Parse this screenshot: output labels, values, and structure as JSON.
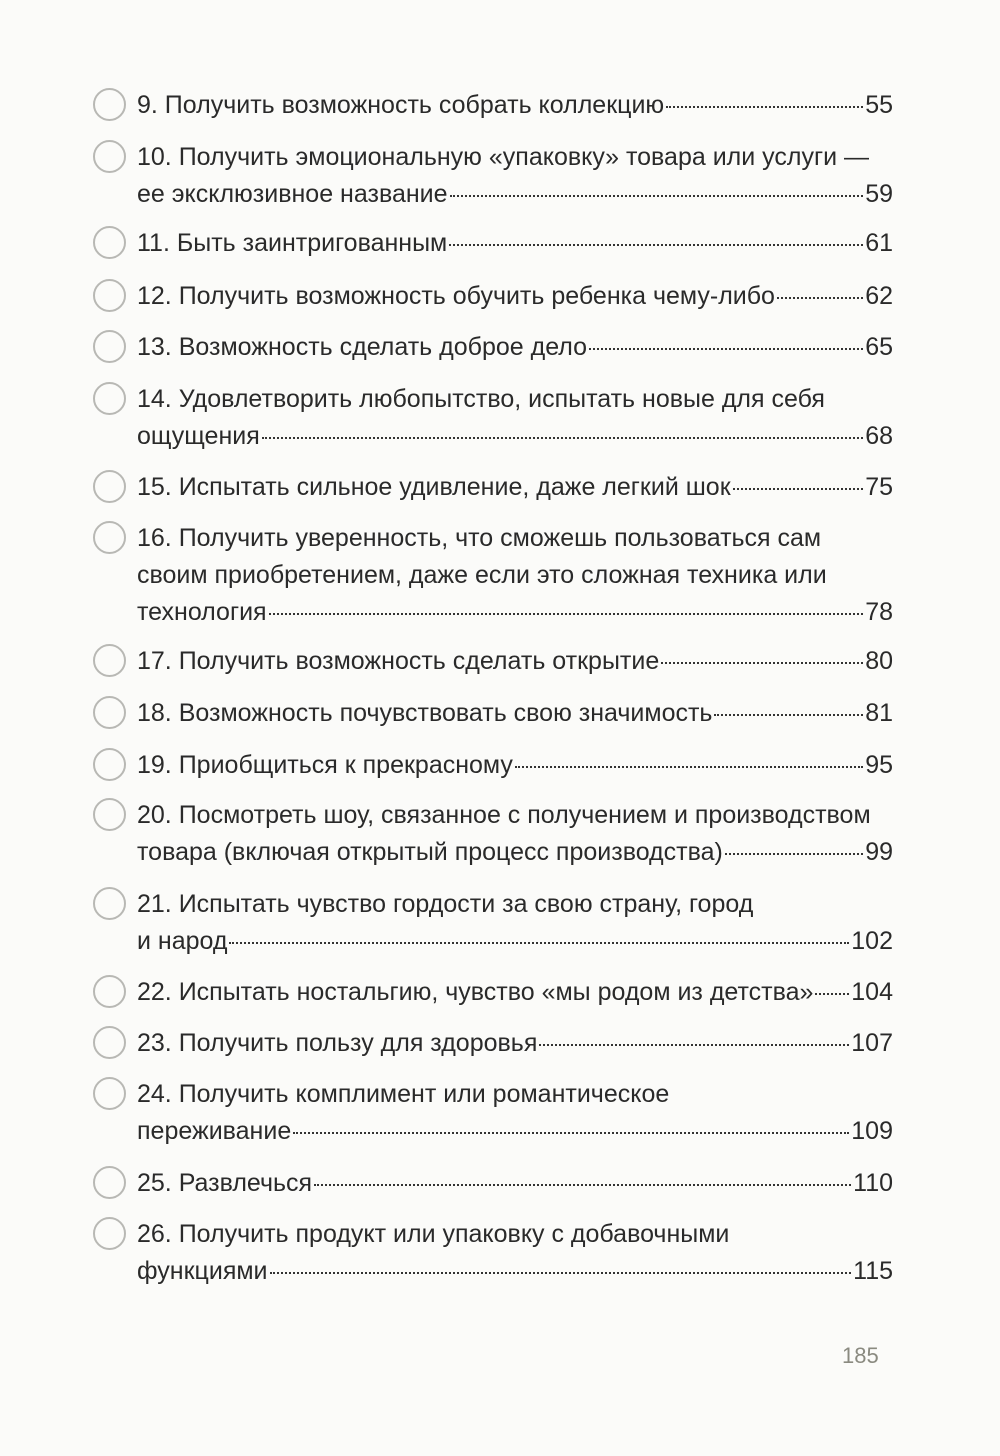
{
  "entries": [
    {
      "lines": [
        "9. Получить возможность собрать коллекцию"
      ],
      "page": "55"
    },
    {
      "lines": [
        "10. Получить эмоциональную «упаковку» товара или услуги —",
        "ее эксклюзивное название"
      ],
      "page": "59"
    },
    {
      "lines": [
        "11. Быть заинтригованным"
      ],
      "page": "61"
    },
    {
      "lines": [
        "12. Получить возможность обучить ребенка чему-либо"
      ],
      "page": "62"
    },
    {
      "lines": [
        "13. Возможность сделать доброе дело"
      ],
      "page": "65"
    },
    {
      "lines": [
        "14. Удовлетворить любопытство, испытать новые для себя",
        "ощущения"
      ],
      "page": "68"
    },
    {
      "lines": [
        "15. Испытать сильное удивление, даже легкий шок"
      ],
      "page": "75"
    },
    {
      "lines": [
        "16. Получить уверенность, что сможешь пользоваться сам",
        "своим приобретением, даже если это сложная техника или",
        "технология"
      ],
      "page": "78"
    },
    {
      "lines": [
        "17. Получить возможность сделать открытие"
      ],
      "page": "80"
    },
    {
      "lines": [
        "18. Возможность почувствовать свою значимость"
      ],
      "page": "81"
    },
    {
      "lines": [
        "19. Приобщиться к прекрасному"
      ],
      "page": "95"
    },
    {
      "lines": [
        "20. Посмотреть шоу, связанное с получением и производством",
        "товара (включая открытый процесс производства)"
      ],
      "page": "99"
    },
    {
      "lines": [
        "21. Испытать чувство гордости за свою страну, город",
        "и народ"
      ],
      "page": "102"
    },
    {
      "lines": [
        "22. Испытать ностальгию, чувство «мы родом из детства»"
      ],
      "page": "104"
    },
    {
      "lines": [
        "23. Получить пользу для здоровья"
      ],
      "page": "107"
    },
    {
      "lines": [
        "24.  Получить комплимент или романтическое",
        "переживание"
      ],
      "page": "109"
    },
    {
      "lines": [
        "25. Развлечься"
      ],
      "page": "110"
    },
    {
      "lines": [
        "26. Получить продукт или упаковку с добавочными",
        "функциями"
      ],
      "page": "115"
    }
  ],
  "folio": "185"
}
